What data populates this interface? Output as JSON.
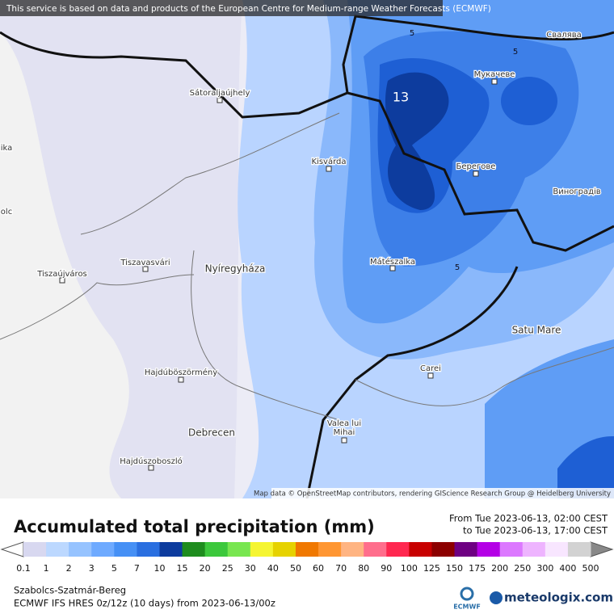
{
  "header": {
    "notice": "This service is based on data and products of the European Centre for Medium-range Weather Forecasts (ECMWF)"
  },
  "map": {
    "places": [
      "Sátoraljaújhely",
      "Kisvárda",
      "Мукачеве",
      "Свалява",
      "Берегове",
      "Виноградів",
      "Tiszavasvári",
      "Nyíregyháza",
      "Tiszaújváros",
      "Mátészalka",
      "Satu Mare",
      "Hajdúböszörmény",
      "Carei",
      "Debrecen",
      "Valea lui",
      "Mihai",
      "Hajdúszoboszló",
      "ika",
      "olc"
    ],
    "contour_labels": [
      "5",
      "5",
      "5",
      "13"
    ],
    "attribution": "Map data © OpenStreetMap contributors, rendering GIScience Research Group @ Heidelberg University"
  },
  "legend": {
    "title": "Accumulated total precipitation (mm)",
    "from": "From Tue 2023-06-13, 02:00 CEST",
    "to": "to Tue 2023-06-13, 17:00 CEST",
    "ticks": [
      0.1,
      1,
      2,
      3,
      5,
      7,
      10,
      15,
      20,
      25,
      30,
      40,
      50,
      60,
      70,
      80,
      90,
      100,
      125,
      150,
      175,
      200,
      250,
      300,
      400,
      500
    ],
    "colors": [
      "#d8d8f0",
      "#bcd8ff",
      "#96c3ff",
      "#6eaaff",
      "#4690f5",
      "#2a6fe0",
      "#0d3c9e",
      "#1e8c1e",
      "#3cc83c",
      "#78e650",
      "#f5f532",
      "#e6d200",
      "#f07800",
      "#ff9632",
      "#ffb482",
      "#ff6e8c",
      "#ff2850",
      "#c80000",
      "#8c0000",
      "#6e0082",
      "#b400e6",
      "#dc78ff",
      "#eeb4ff",
      "#f8e6ff",
      "#d2d2d2"
    ]
  },
  "footer": {
    "region": "Szabolcs-Szatmár-Bereg",
    "model": "ECMWF IFS HRES 0z/12z (10 days) from  2023-06-13/00z",
    "ecmwf_logo": "ECMWF",
    "brand": "meteologix.com"
  }
}
